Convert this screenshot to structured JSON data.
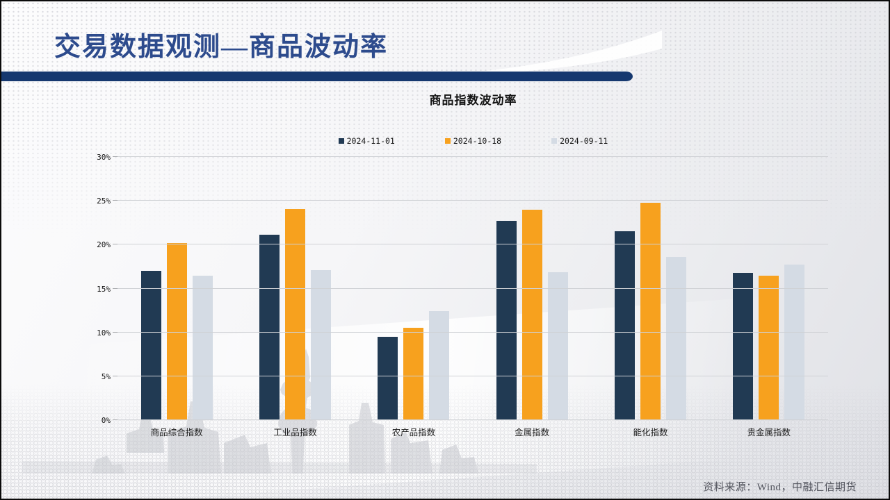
{
  "slide": {
    "title": "交易数据观测—商品波动率",
    "source_note": "资料来源：Wind，中融汇信期货"
  },
  "theme": {
    "title_color": "#2D4B8D",
    "title_rule_color": "#16386F",
    "source_color": "#53555E",
    "axis_text_color": "#111111",
    "gridline_color": "#CFD1D5"
  },
  "chart_data": {
    "type": "bar",
    "title": "商品指数波动率",
    "categories": [
      "商品综合指数",
      "工业品指数",
      "农产品指数",
      "金属指数",
      "能化指数",
      "贵金属指数"
    ],
    "series": [
      {
        "name": "2024-11-01",
        "color": "#213A53",
        "values": [
          17.0,
          21.1,
          9.5,
          22.7,
          21.5,
          16.8
        ]
      },
      {
        "name": "2024-10-18",
        "color": "#F7A11E",
        "values": [
          20.2,
          24.1,
          10.5,
          24.0,
          24.8,
          16.5
        ]
      },
      {
        "name": "2024-09-11",
        "color": "#D4DBE4",
        "values": [
          16.5,
          17.1,
          12.4,
          16.9,
          18.6,
          17.7
        ]
      }
    ],
    "xlabel": "",
    "ylabel": "",
    "ylim": [
      0,
      30
    ],
    "y_tick_step": 5,
    "y_tick_labels": [
      "0%",
      "5%",
      "10%",
      "15%",
      "20%",
      "25%",
      "30%"
    ],
    "grid": true,
    "legend_position": "top-center"
  }
}
